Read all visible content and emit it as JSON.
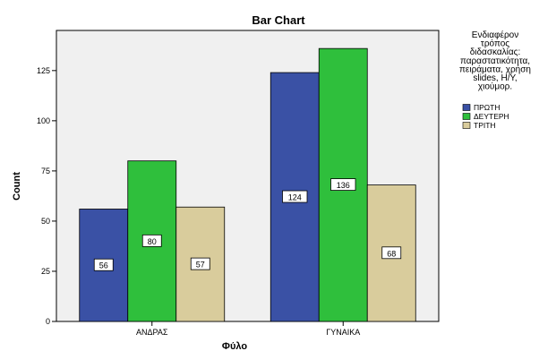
{
  "chart_data": {
    "type": "bar",
    "title": "Bar Chart",
    "xlabel": "Φύλο",
    "ylabel": "Count",
    "categories": [
      "ΑΝΔΡΑΣ",
      "ΓΥΝΑΙΚΑ"
    ],
    "series": [
      {
        "name": "ΠΡΩΤΗ",
        "values": [
          56,
          124
        ],
        "color": "#3a51a5"
      },
      {
        "name": "ΔΕΥΤΕΡΗ",
        "values": [
          80,
          136
        ],
        "color": "#2fbf3c"
      },
      {
        "name": "ΤΡΙΤΗ",
        "values": [
          57,
          68
        ],
        "color": "#d9cc9c"
      }
    ],
    "ylim": [
      0,
      145
    ],
    "yticks": [
      0,
      25,
      50,
      75,
      100,
      125
    ],
    "grid": false,
    "plot_background": "#f0f0f0",
    "legend_position": "right",
    "legend_title": "Ενδιαφέρον τρόπος διδασκαλίας: παραστατικότητα, πειράματα, χρήση slides, Η/Υ, χιούμορ."
  }
}
